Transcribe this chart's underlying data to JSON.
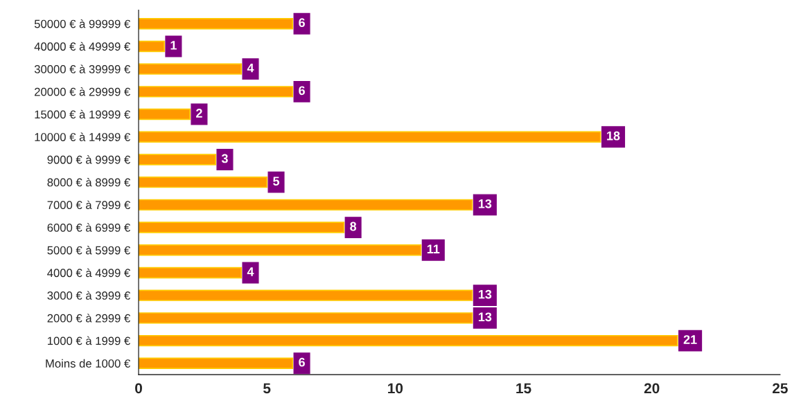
{
  "chart_data": {
    "type": "bar",
    "orientation": "horizontal",
    "categories": [
      "50000 € à 99999 €",
      "40000 € à 49999 €",
      "30000 € à 39999 €",
      "20000 € à 29999 €",
      "15000 € à 19999 €",
      "10000 € à 14999 €",
      "9000 € à 9999 €",
      "8000 € à 8999 €",
      "7000 € à 7999 €",
      "6000 € à 6999 €",
      "5000 € à 5999 €",
      "4000 € à 4999 €",
      "3000 € à 3999 €",
      "2000 € à 2999 €",
      "1000 € à 1999 €",
      "Moins de 1000 €"
    ],
    "values": [
      6,
      1,
      4,
      6,
      2,
      18,
      3,
      5,
      13,
      8,
      11,
      4,
      13,
      13,
      21,
      6
    ],
    "color": "#ff9900",
    "xlim": [
      0,
      25
    ],
    "xticks": [
      0,
      5,
      10,
      15,
      20,
      25
    ],
    "data_labels": true,
    "grid": false,
    "legend": false
  }
}
